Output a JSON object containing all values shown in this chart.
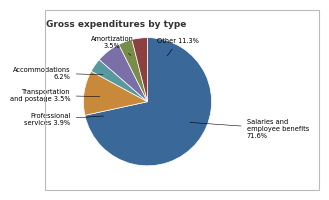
{
  "title": "Gross expenditures by type",
  "slices": [
    {
      "label": "Salaries and\nemployee benefits\n71.6%",
      "value": 71.6,
      "color": "#3a6898"
    },
    {
      "label": "Other 11.3%",
      "value": 11.3,
      "color": "#c8893a"
    },
    {
      "label": "Amortization\n3.5%",
      "value": 3.5,
      "color": "#5899a0"
    },
    {
      "label": "Accommodations\n6.2%",
      "value": 6.2,
      "color": "#7b6fa8"
    },
    {
      "label": "Transportation\nand postage 3.5%",
      "value": 3.5,
      "color": "#7a8c4a"
    },
    {
      "label": "Professional\nservices 3.9%",
      "value": 3.9,
      "color": "#8c4040"
    }
  ],
  "title_fontsize": 6.5,
  "label_fontsize": 4.8,
  "background_color": "#ffffff",
  "fig_bg": "#ffffff",
  "border_color": "#cccccc"
}
